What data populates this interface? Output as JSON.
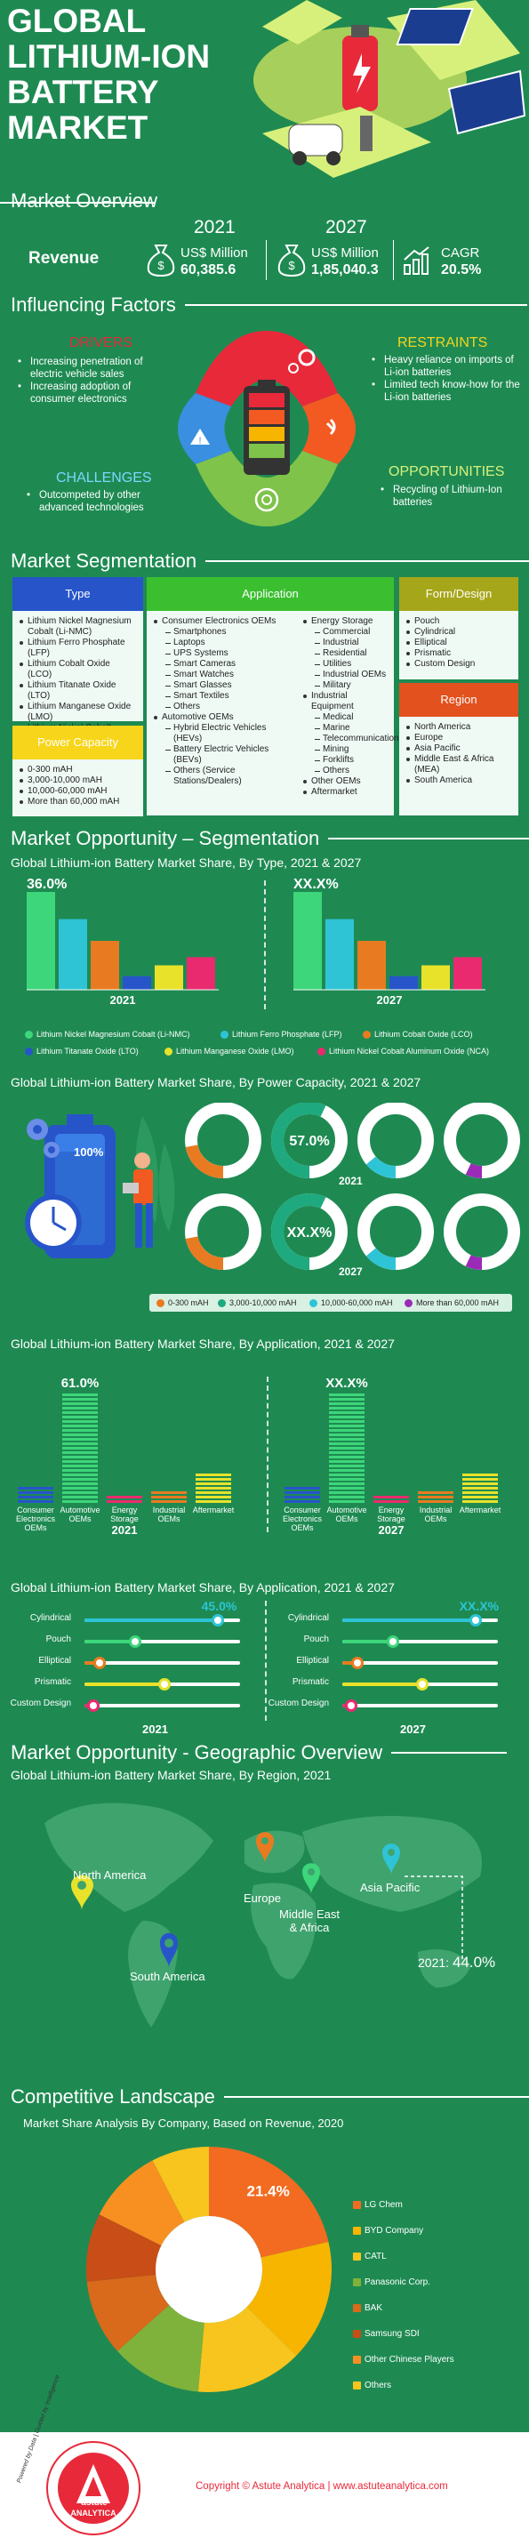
{
  "header": {
    "title_lines": [
      "GLOBAL",
      "LITHIUM-ION",
      "BATTERY",
      "MARKET"
    ],
    "overview_title": "Market Overview"
  },
  "overview": {
    "revenue_label": "Revenue",
    "year_2021": "2021",
    "year_2027": "2027",
    "unit_2021": "US$ Million",
    "value_2021": "60,385.6",
    "unit_2027": "US$ Million",
    "value_2027": "1,85,040.3",
    "cagr_label": "CAGR",
    "cagr_value": "20.5%"
  },
  "factors": {
    "title": "Influencing Factors",
    "drivers_title": "DRIVERS",
    "drivers": [
      "Increasing penetration of electric vehicle sales",
      "Increasing adoption of consumer electronics"
    ],
    "restraints_title": "RESTRAINTS",
    "restraints": [
      "Heavy reliance on imports of Li-ion batteries",
      "Limited tech know-how for the Li-ion batteries"
    ],
    "challenges_title": "CHALLENGES",
    "challenges": [
      "Outcompeted by other advanced technologies"
    ],
    "opportunities_title": "OPPORTUNITIES",
    "opportunities": [
      "Recycling of Lithium-Ion batteries"
    ]
  },
  "segmentation": {
    "title": "Market Segmentation",
    "type_title": "Type",
    "type_items": [
      "Lithium Nickel Magnesium Cobalt (Li-NMC)",
      "Lithium Ferro Phosphate (LFP)",
      "Lithium Cobalt Oxide (LCO)",
      "Lithium Titanate Oxide (LTO)",
      "Lithium Manganese Oxide (LMO)",
      "Lithium Nickel Cobalt Aluminum Oxide (NCA)"
    ],
    "power_title": "Power Capacity",
    "power_items": [
      "0-300 mAH",
      "3,000-10,000 mAH",
      "10,000-60,000 mAH",
      "More than 60,000 mAH"
    ],
    "app_title": "Application",
    "app_col1": [
      {
        "t": "Consumer Electronics OEMs",
        "s": false
      },
      {
        "t": "Smartphones",
        "s": true
      },
      {
        "t": "Laptops",
        "s": true
      },
      {
        "t": "UPS Systems",
        "s": true
      },
      {
        "t": "Smart Cameras",
        "s": true
      },
      {
        "t": "Smart Watches",
        "s": true
      },
      {
        "t": "Smart Glasses",
        "s": true
      },
      {
        "t": "Smart Textiles",
        "s": true
      },
      {
        "t": "Others",
        "s": true
      },
      {
        "t": "Automotive OEMs",
        "s": false
      },
      {
        "t": "Hybrid Electric Vehicles (HEVs)",
        "s": true
      },
      {
        "t": "Battery Electric Vehicles (BEVs)",
        "s": true
      },
      {
        "t": "Others (Service Stations/Dealers)",
        "s": true
      }
    ],
    "app_col2": [
      {
        "t": "Energy Storage",
        "s": false
      },
      {
        "t": "Commercial",
        "s": true
      },
      {
        "t": "Industrial",
        "s": true
      },
      {
        "t": "Residential",
        "s": true
      },
      {
        "t": "Utilities",
        "s": true
      },
      {
        "t": "Industrial OEMs",
        "s": true
      },
      {
        "t": "Military",
        "s": true
      },
      {
        "t": "Industrial Equipment",
        "s": false
      },
      {
        "t": "Medical",
        "s": true
      },
      {
        "t": "Marine",
        "s": true
      },
      {
        "t": "Telecommunication",
        "s": true
      },
      {
        "t": "Mining",
        "s": true
      },
      {
        "t": "Forklifts",
        "s": true
      },
      {
        "t": "Others",
        "s": true
      },
      {
        "t": "Other OEMs",
        "s": false
      },
      {
        "t": "Aftermarket",
        "s": false
      }
    ],
    "form_title": "Form/Design",
    "form_items": [
      "Pouch",
      "Cylindrical",
      "Elliptical",
      "Prismatic",
      "Custom Design"
    ],
    "region_title": "Region",
    "region_items": [
      "North America",
      "Europe",
      "Asia Pacific",
      "Middle East & Africa (MEA)",
      "South America"
    ]
  },
  "opp_seg": {
    "title": "Market Opportunity – Segmentation",
    "type_chart_title": "Global Lithium-ion Battery Market Share, By Type, 2021 & 2027",
    "power_chart_title": "Global Lithium-ion Battery Market Share, By Power Capacity, 2021 & 2027",
    "app_chart_title": "Global Lithium-ion Battery Market Share, By Application, 2021 & 2027",
    "form_chart_title": "Global Lithium-ion Battery Market Share, By Application, 2021 & 2027",
    "battery_label": "100%"
  },
  "geo": {
    "title": "Market Opportunity - Geographic Overview",
    "chart_title": "Global Lithium-ion Battery Market Share, By Region, 2021",
    "regions": [
      "North America",
      "Europe",
      "Middle East & Africa",
      "Asia Pacific",
      "South America"
    ],
    "ap_label": "2021:",
    "ap_value": "44.0%"
  },
  "competitive": {
    "title": "Competitive Landscape",
    "chart_title": "Market Share Analysis By Company, Based on Revenue, 2020",
    "label": "21.4%"
  },
  "footer": {
    "logo_ring": "Powered by Data | Guided by Intelligence",
    "logo_name_1": "astute",
    "logo_name_2": "ANALYTICA",
    "copyright": "Copyright © Astute Analytica  |  www.astuteanalytica.com"
  },
  "colors": {
    "bg": "#1e8a52",
    "nmc": "#3dd67a",
    "lfp": "#2ec4d6",
    "lco": "#e87b21",
    "lto": "#2755c9",
    "lmo": "#e8e22b",
    "nca": "#ea2a6f",
    "red": "#e8293a",
    "blue": "#3a8fe0",
    "green": "#7fc34a",
    "orange": "#f25a22"
  },
  "chart_data": [
    {
      "type": "bar",
      "title": "Global Lithium-ion Battery Market Share, By Type, 2021 & 2027",
      "categories": [
        "2021",
        "2027"
      ],
      "series": [
        {
          "name": "Lithium Nickel Magnesium Cobalt (Li-NMC)",
          "values": [
            36.0,
            36.0
          ],
          "labels": [
            "36.0%",
            "XX.X%"
          ]
        },
        {
          "name": "Lithium Ferro Phosphate (LFP)",
          "values": [
            26,
            26
          ]
        },
        {
          "name": "Lithium Cobalt Oxide (LCO)",
          "values": [
            18,
            18
          ]
        },
        {
          "name": "Lithium Titanate Oxide (LTO)",
          "values": [
            5,
            5
          ]
        },
        {
          "name": "Lithium Manganese Oxide (LMO)",
          "values": [
            9,
            9
          ]
        },
        {
          "name": "Lithium Nickel Cobalt Aluminum Oxide (NCA)",
          "values": [
            12,
            12
          ]
        }
      ]
    },
    {
      "type": "pie",
      "title": "Global Lithium-ion Battery Market Share, By Power Capacity, 2021 & 2027",
      "categories": [
        "0-300 mAH",
        "3,000-10,000 mAH",
        "10,000-60,000 mAH",
        "More than 60,000 mAH"
      ],
      "series": [
        {
          "name": "2021",
          "values": [
            22,
            57.0,
            14,
            7
          ],
          "labels": [
            "",
            "57.0%",
            "",
            ""
          ]
        },
        {
          "name": "2027",
          "values": [
            22,
            57.0,
            14,
            7
          ],
          "labels": [
            "",
            "XX.X%",
            "",
            ""
          ]
        }
      ]
    },
    {
      "type": "bar",
      "title": "Global Lithium-ion Battery Market Share, By Application, 2021 & 2027",
      "categories": [
        "Consumer Electronics OEMs",
        "Automotive OEMs",
        "Energy Storage",
        "Industrial OEMs",
        "Aftermarket"
      ],
      "series": [
        {
          "name": "2021",
          "values": [
            12,
            61.0,
            7,
            9,
            18
          ],
          "labels": [
            "",
            "61.0%",
            "",
            "",
            ""
          ]
        },
        {
          "name": "2027",
          "values": [
            12,
            61.0,
            7,
            9,
            18
          ],
          "labels": [
            "",
            "XX.X%",
            "",
            "",
            ""
          ]
        }
      ]
    },
    {
      "type": "bar",
      "title": "Global Lithium-ion Battery Market Share, By Application, 2021 & 2027",
      "categories": [
        "Cylindrical",
        "Pouch",
        "Elliptical",
        "Prismatic",
        "Custom Design"
      ],
      "series": [
        {
          "name": "2021",
          "values": [
            45.0,
            17,
            5,
            27,
            3
          ],
          "labels": [
            "45.0%",
            "",
            "",
            "",
            ""
          ]
        },
        {
          "name": "2027",
          "values": [
            45.0,
            17,
            5,
            27,
            3
          ],
          "labels": [
            "XX.X%",
            "",
            "",
            "",
            ""
          ]
        }
      ],
      "colors": [
        "#2ec4d6",
        "#3dd67a",
        "#e87b21",
        "#e8e22b",
        "#ea2a6f"
      ]
    },
    {
      "type": "pie",
      "title": "Market Share Analysis By Company, Based on Revenue, 2020",
      "categories": [
        "LG Chem",
        "BYD Company",
        "CATL",
        "Panasonic Corp.",
        "BAK",
        "Samsung SDI",
        "Other Chinese Players",
        "Others"
      ],
      "values": [
        21.4,
        16,
        14,
        12,
        10,
        9,
        10,
        7.6
      ],
      "labels": [
        "21.4%",
        "",
        "",
        "",
        "",
        "",
        "",
        ""
      ],
      "colors": [
        "#f26b21",
        "#f7b500",
        "#f7c51e",
        "#7fb23b",
        "#d9691b",
        "#c84d16",
        "#f79020",
        "#f7c51e"
      ]
    }
  ]
}
